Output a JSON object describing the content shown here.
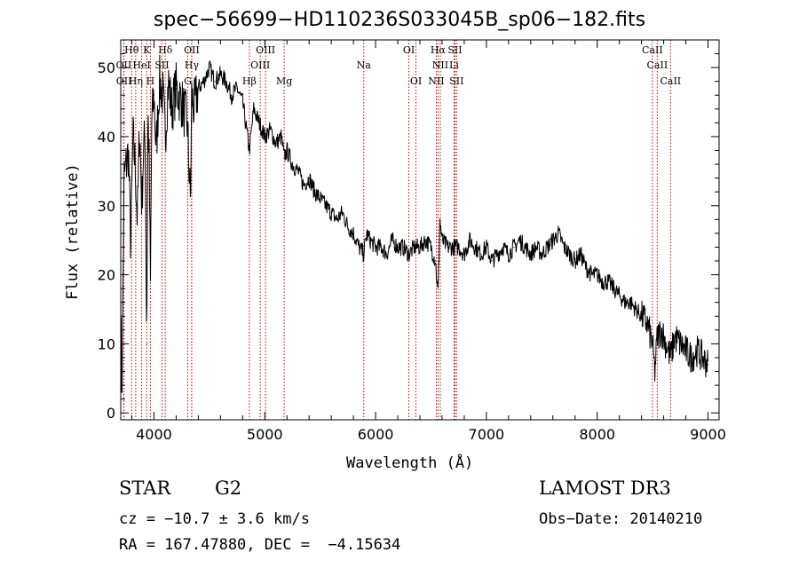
{
  "chart_data": {
    "type": "line",
    "title": "spec−56699−HD110236S033045B_sp06−182.fits",
    "xlabel": "Wavelength (Å)",
    "ylabel": "Flux (relative)",
    "xlim": [
      3700,
      9100
    ],
    "ylim": [
      -1,
      54
    ],
    "x_ticks": [
      4000,
      5000,
      6000,
      7000,
      8000,
      9000
    ],
    "y_ticks": [
      0,
      10,
      20,
      30,
      40,
      50
    ],
    "grid": false,
    "series": [
      {
        "name": "flux",
        "color": "#000000",
        "x": [
          3700,
          3710,
          3730,
          3750,
          3770,
          3790,
          3810,
          3830,
          3850,
          3870,
          3890,
          3905,
          3920,
          3934,
          3945,
          3955,
          3968,
          3980,
          4000,
          4020,
          4050,
          4080,
          4102,
          4130,
          4160,
          4200,
          4250,
          4300,
          4330,
          4340,
          4360,
          4400,
          4450,
          4500,
          4550,
          4600,
          4650,
          4700,
          4750,
          4800,
          4861,
          4900,
          4950,
          5000,
          5050,
          5100,
          5150,
          5175,
          5200,
          5250,
          5300,
          5350,
          5400,
          5450,
          5500,
          5550,
          5600,
          5650,
          5700,
          5750,
          5800,
          5850,
          5893,
          5920,
          5950,
          6000,
          6050,
          6100,
          6150,
          6200,
          6250,
          6300,
          6350,
          6400,
          6450,
          6500,
          6540,
          6563,
          6580,
          6600,
          6650,
          6700,
          6750,
          6800,
          6850,
          6900,
          6950,
          7000,
          7050,
          7100,
          7150,
          7200,
          7250,
          7300,
          7350,
          7400,
          7450,
          7500,
          7550,
          7600,
          7650,
          7700,
          7750,
          7800,
          7850,
          7900,
          7950,
          8000,
          8050,
          8100,
          8150,
          8200,
          8250,
          8300,
          8350,
          8400,
          8450,
          8498,
          8520,
          8542,
          8580,
          8620,
          8662,
          8700,
          8750,
          8800,
          8850,
          8900,
          8950,
          9000
        ],
        "y": [
          16,
          2,
          34,
          36,
          38,
          24,
          40,
          36,
          28,
          42,
          30,
          38,
          40,
          10,
          44,
          38,
          18,
          42,
          46,
          38,
          48,
          46,
          40,
          48,
          44,
          47,
          45,
          42,
          30,
          46,
          44,
          47,
          48,
          50,
          48,
          49,
          48,
          46,
          47,
          45,
          38,
          44,
          42,
          40,
          41,
          39,
          40,
          37,
          38,
          36,
          35,
          33,
          34,
          32,
          31,
          30,
          29,
          28,
          29,
          27,
          26,
          24,
          23,
          26,
          25,
          24,
          24,
          23,
          25,
          24,
          24,
          23,
          24,
          24,
          25,
          24,
          22,
          17,
          28,
          25,
          24,
          24,
          24,
          23,
          25,
          24,
          23,
          24,
          22,
          23,
          24,
          23,
          24,
          25,
          24,
          23,
          24,
          23,
          24,
          25,
          26,
          24,
          23,
          22,
          23,
          21,
          20,
          20,
          19,
          19,
          18,
          17,
          16,
          16,
          15,
          14,
          13,
          10,
          6,
          11,
          12,
          10,
          8,
          11,
          10,
          9,
          8,
          9,
          8,
          7
        ]
      }
    ],
    "line_markers": [
      {
        "label": "Hθ",
        "x": 3798,
        "row": 0
      },
      {
        "label": "K",
        "x": 3934,
        "row": 0
      },
      {
        "label": "Hδ",
        "x": 4102,
        "row": 0
      },
      {
        "label": "OII",
        "x": 4341,
        "row": 0
      },
      {
        "label": "OIII",
        "x": 5007,
        "row": 0
      },
      {
        "label": "OI",
        "x": 6300,
        "row": 0
      },
      {
        "label": "Hα",
        "x": 6563,
        "row": 0
      },
      {
        "label": "SII",
        "x": 6716,
        "row": 0
      },
      {
        "label": "CaII",
        "x": 8498,
        "row": 0
      },
      {
        "label": "OII",
        "x": 3727,
        "row": 1
      },
      {
        "label": "HeI",
        "x": 3889,
        "row": 1
      },
      {
        "label": "SII",
        "x": 4072,
        "row": 1
      },
      {
        "label": "Hγ",
        "x": 4340,
        "row": 1
      },
      {
        "label": "OIII",
        "x": 4959,
        "row": 1
      },
      {
        "label": "Na",
        "x": 5893,
        "row": 1
      },
      {
        "label": "NII",
        "x": 6584,
        "row": 1
      },
      {
        "label": "Li",
        "x": 6708,
        "row": 1
      },
      {
        "label": "CaII",
        "x": 8542,
        "row": 1
      },
      {
        "label": "OII",
        "x": 3729,
        "row": 2
      },
      {
        "label": "Hη",
        "x": 3835,
        "row": 2
      },
      {
        "label": "H",
        "x": 3968,
        "row": 2
      },
      {
        "label": "G",
        "x": 4305,
        "row": 2
      },
      {
        "label": "Hβ",
        "x": 4861,
        "row": 2
      },
      {
        "label": "Mg",
        "x": 5175,
        "row": 2
      },
      {
        "label": "OI",
        "x": 6364,
        "row": 2
      },
      {
        "label": "NII",
        "x": 6548,
        "row": 2
      },
      {
        "label": "SII",
        "x": 6731,
        "row": 2
      },
      {
        "label": "CaII",
        "x": 8662,
        "row": 2
      }
    ]
  },
  "info": {
    "object_type": "STAR",
    "subclass": "G2",
    "survey": "LAMOST DR3",
    "cz": "cz = −10.7 ± 3.6 km/s",
    "obs_date": "Obs−Date: 20140210",
    "radec": "RA = 167.47880, DEC =  −4.15634"
  },
  "colors": {
    "marker": "#cc0000",
    "line": "#000000"
  }
}
